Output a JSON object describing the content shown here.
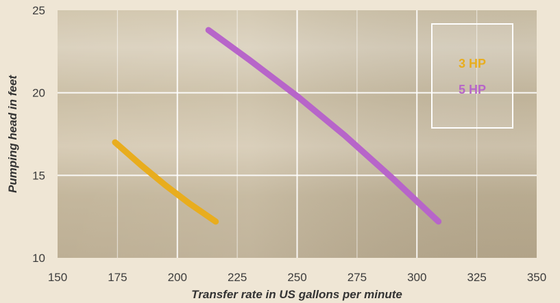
{
  "chart_data": {
    "type": "line",
    "title": "",
    "xlabel": "Transfer rate in US gallons per minute",
    "ylabel": "Pumping head in feet",
    "xlim": [
      150,
      350
    ],
    "ylim": [
      10,
      25
    ],
    "xticks": [
      150,
      175,
      200,
      225,
      250,
      275,
      300,
      325,
      350
    ],
    "yticks": [
      10,
      15,
      20,
      25
    ],
    "grid": true,
    "legend_position": "top-right",
    "series": [
      {
        "name": "3 HP",
        "color": "#e8ad1e",
        "x": [
          174,
          185,
          195,
          205,
          216
        ],
        "y": [
          17.0,
          15.6,
          14.4,
          13.3,
          12.2
        ]
      },
      {
        "name": "5 HP",
        "color": "#b765c9",
        "x": [
          213,
          230,
          250,
          270,
          290,
          309
        ],
        "y": [
          23.8,
          22.0,
          19.8,
          17.4,
          14.8,
          12.2
        ]
      }
    ]
  }
}
